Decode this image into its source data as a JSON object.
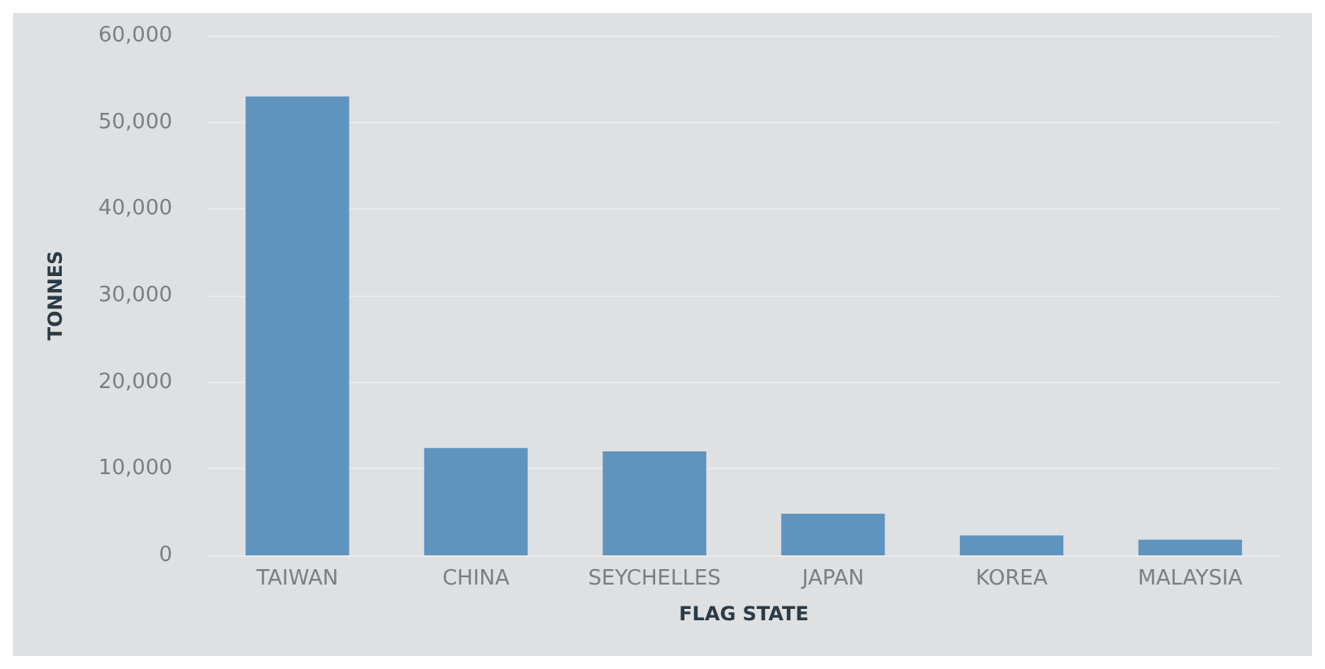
{
  "chart_data": {
    "type": "bar",
    "xlabel": "FLAG STATE",
    "ylabel": "TONNES",
    "categories": [
      "TAIWAN",
      "CHINA",
      "SEYCHELLES",
      "JAPAN",
      "KOREA",
      "MALAYSIA"
    ],
    "values": [
      53000,
      12400,
      12000,
      4800,
      2300,
      1800
    ],
    "color": "#5f94bf",
    "ylim": [
      0,
      60000
    ],
    "yticks": [
      {
        "value": 0,
        "label": "0"
      },
      {
        "value": 10000,
        "label": "10,000"
      },
      {
        "value": 20000,
        "label": "20,000"
      },
      {
        "value": 30000,
        "label": "30,000"
      },
      {
        "value": 40000,
        "label": "40,000"
      },
      {
        "value": 50000,
        "label": "50,000"
      },
      {
        "value": 60000,
        "label": "60,000"
      }
    ],
    "grid": "y"
  }
}
